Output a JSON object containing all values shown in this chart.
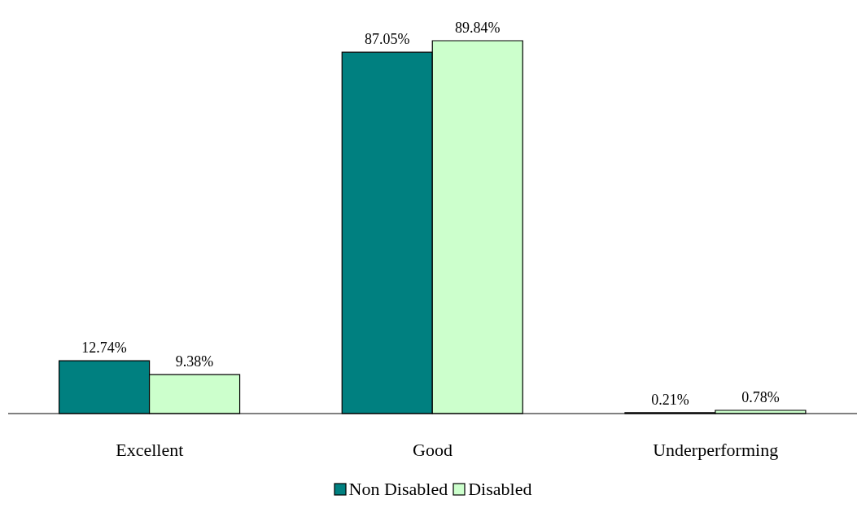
{
  "chart_data": {
    "type": "bar",
    "categories": [
      "Excellent",
      "Good",
      "Underperforming"
    ],
    "series": [
      {
        "name": "Non Disabled",
        "color": "#008080",
        "values": [
          12.74,
          87.05,
          0.21
        ],
        "value_labels": [
          "12.74%",
          "87.05%",
          "0.21%"
        ]
      },
      {
        "name": "Disabled",
        "color": "#ccffcc",
        "values": [
          9.38,
          89.84,
          0.78
        ],
        "value_labels": [
          "9.38%",
          "89.84%",
          "0.78%"
        ]
      }
    ],
    "legend": "bottom",
    "grid": false
  }
}
